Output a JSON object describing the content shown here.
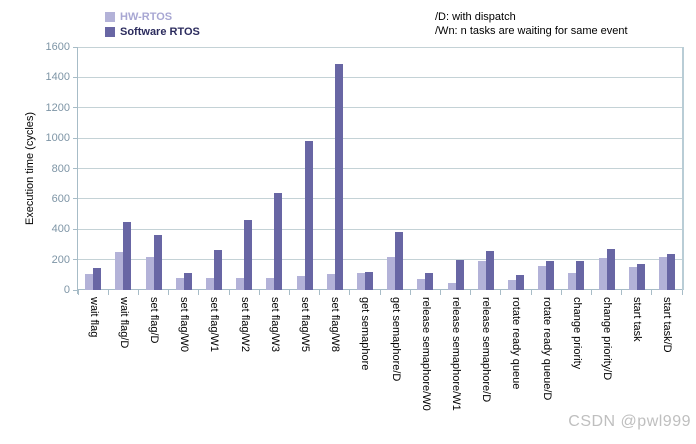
{
  "legend": {
    "items": [
      {
        "label": "HW-RTOS",
        "swatch_color": "#b3b2d8",
        "text_color": "#a8a7d3"
      },
      {
        "label": "Software RTOS",
        "swatch_color": "#6866a4",
        "text_color": "#2c2c5e"
      }
    ]
  },
  "annotation": {
    "line1": "/D: with dispatch",
    "line2": "/Wn: n tasks are waiting for same event"
  },
  "watermark": "CSDN @pwl999",
  "colors": {
    "grid": "#c4d2d6",
    "axis": "#a7bcc7",
    "right_border": "#b9cdd6",
    "ytick_label": "#7e95a6",
    "hw_bar": "#b3b2d8",
    "sw_bar": "#6866a4"
  },
  "chart_data": {
    "type": "bar",
    "title": "",
    "xlabel": "",
    "ylabel": "Execution time (cycles)",
    "ylim": [
      0,
      1600
    ],
    "ytick_step": 200,
    "grid": true,
    "legend_position": "top-left",
    "x_label_rotation": 90,
    "categories": [
      "wait flag",
      "wait flag/D",
      "set flag/D",
      "set flag/W0",
      "set flag/W1",
      "set flag/W2",
      "set flag/W3",
      "set flag/W5",
      "set flag/W8",
      "get semaphore",
      "get semaphore/D",
      "release semaphore/W0",
      "release semaphore/W1",
      "release semaphore/D",
      "rotate ready queue",
      "rotate ready queue/D",
      "change priority",
      "change priority/D",
      "start task",
      "start task/D"
    ],
    "series": [
      {
        "name": "HW-RTOS",
        "color": "#b3b2d8",
        "values": [
          105,
          250,
          220,
          80,
          80,
          80,
          80,
          95,
          105,
          110,
          220,
          70,
          45,
          190,
          65,
          160,
          110,
          210,
          150,
          215
        ]
      },
      {
        "name": "Software RTOS",
        "color": "#6866a4",
        "values": [
          145,
          450,
          365,
          115,
          265,
          460,
          640,
          980,
          1490,
          120,
          380,
          110,
          195,
          260,
          100,
          190,
          190,
          270,
          170,
          240
        ]
      }
    ]
  }
}
